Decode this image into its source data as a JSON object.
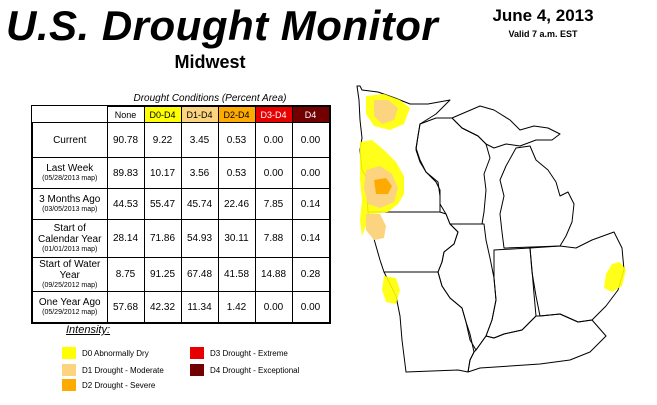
{
  "header": {
    "title": "U.S. Drought Monitor",
    "date": "June 4, 2013",
    "valid": "Valid 7 a.m. EST",
    "region": "Midwest"
  },
  "table": {
    "caption": "Drought Conditions (Percent Area)",
    "columns": [
      "None",
      "D0-D4",
      "D1-D4",
      "D2-D4",
      "D3-D4",
      "D4"
    ],
    "rows": [
      {
        "label": "Current",
        "sub": "",
        "values": [
          "90.78",
          "9.22",
          "3.45",
          "0.53",
          "0.00",
          "0.00"
        ]
      },
      {
        "label": "Last Week",
        "sub": "(05/28/2013 map)",
        "values": [
          "89.83",
          "10.17",
          "3.56",
          "0.53",
          "0.00",
          "0.00"
        ]
      },
      {
        "label": "3 Months Ago",
        "sub": "(03/05/2013 map)",
        "values": [
          "44.53",
          "55.47",
          "45.74",
          "22.46",
          "7.85",
          "0.14"
        ]
      },
      {
        "label": "Start of Calendar Year",
        "sub": "(01/01/2013 map)",
        "values": [
          "28.14",
          "71.86",
          "54.93",
          "30.11",
          "7.88",
          "0.14"
        ]
      },
      {
        "label": "Start of Water Year",
        "sub": "(09/25/2012 map)",
        "values": [
          "8.75",
          "91.25",
          "67.48",
          "41.58",
          "14.88",
          "0.28"
        ]
      },
      {
        "label": "One Year Ago",
        "sub": "(05/29/2012 map)",
        "values": [
          "57.68",
          "42.32",
          "11.34",
          "1.42",
          "0.00",
          "0.00"
        ]
      }
    ]
  },
  "legend": {
    "title": "Intensity:",
    "items": [
      {
        "label": "D0 Abnormally Dry",
        "color": "#ffff00"
      },
      {
        "label": "D1 Drought - Moderate",
        "color": "#fcd37f"
      },
      {
        "label": "D2 Drought - Severe",
        "color": "#ffaa00"
      },
      {
        "label": "D3 Drought - Extreme",
        "color": "#e60000"
      },
      {
        "label": "D4 Drought - Exceptional",
        "color": "#730000"
      }
    ]
  },
  "map": {
    "states": [
      "Minnesota",
      "Wisconsin",
      "Michigan",
      "Iowa",
      "Missouri",
      "Illinois",
      "Indiana",
      "Ohio",
      "Kentucky"
    ]
  }
}
